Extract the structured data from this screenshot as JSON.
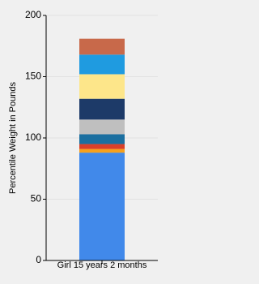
{
  "chart_data": {
    "type": "stacked-bar",
    "y_label": "Percentile Weight in Pounds",
    "categories": [
      "Girl 15 years 2 months"
    ],
    "series": [
      {
        "color": "#4189ea",
        "values": [
          88
        ]
      },
      {
        "color": "#f5a11e",
        "values": [
          3
        ]
      },
      {
        "color": "#d9402a",
        "values": [
          4
        ]
      },
      {
        "color": "#1b6fa0",
        "values": [
          8
        ]
      },
      {
        "color": "#bfbfbf",
        "values": [
          12
        ]
      },
      {
        "color": "#1d3a68",
        "values": [
          17
        ]
      },
      {
        "color": "#fde68a",
        "values": [
          20
        ]
      },
      {
        "color": "#1f9be0",
        "values": [
          16
        ]
      },
      {
        "color": "#c8694a",
        "values": [
          13
        ]
      }
    ],
    "ylim": [
      0,
      200
    ],
    "yticks": [
      0,
      50,
      100,
      150,
      200
    ],
    "grid": true
  }
}
